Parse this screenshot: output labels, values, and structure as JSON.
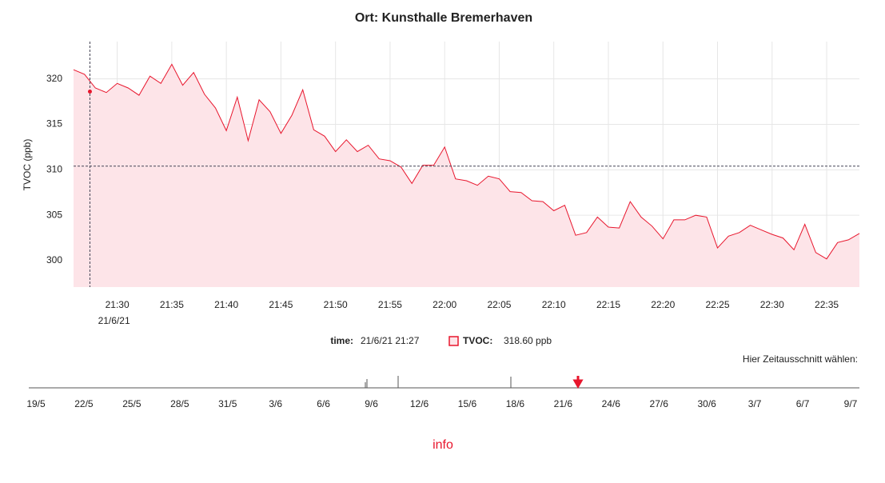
{
  "chart_data": {
    "type": "area",
    "title": "Ort: Kunsthalle Bremerhaven",
    "y_label": "TVOC (ppb)",
    "color": "#e8162d",
    "fill": "#fde4e8",
    "grid": true,
    "xlim": [
      "21:26",
      "22:38"
    ],
    "xticks": [
      "21:30",
      "21:35",
      "21:40",
      "21:45",
      "21:50",
      "21:55",
      "22:00",
      "22:05",
      "22:10",
      "22:15",
      "22:20",
      "22:25",
      "22:30",
      "22:35"
    ],
    "x_date": "21/6/21",
    "ylim": [
      297.1,
      324.1
    ],
    "yticks": [
      300,
      305,
      310,
      315,
      320
    ],
    "x": [
      "21:26",
      "21:27",
      "21:28",
      "21:29",
      "21:30",
      "21:31",
      "21:32",
      "21:33",
      "21:34",
      "21:35",
      "21:36",
      "21:37",
      "21:38",
      "21:39",
      "21:40",
      "21:41",
      "21:42",
      "21:43",
      "21:44",
      "21:45",
      "21:46",
      "21:47",
      "21:48",
      "21:49",
      "21:50",
      "21:51",
      "21:52",
      "21:53",
      "21:54",
      "21:55",
      "21:56",
      "21:57",
      "21:58",
      "21:59",
      "22:00",
      "22:01",
      "22:02",
      "22:03",
      "22:04",
      "22:05",
      "22:06",
      "22:07",
      "22:08",
      "22:09",
      "22:10",
      "22:11",
      "22:12",
      "22:13",
      "22:14",
      "22:15",
      "22:16",
      "22:17",
      "22:18",
      "22:19",
      "22:20",
      "22:21",
      "22:22",
      "22:23",
      "22:24",
      "22:25",
      "22:26",
      "22:27",
      "22:28",
      "22:29",
      "22:30",
      "22:31",
      "22:32",
      "22:33",
      "22:34",
      "22:35",
      "22:36",
      "22:37",
      "22:38"
    ],
    "values": [
      321,
      320.5,
      319,
      318.5,
      319.5,
      319,
      318.2,
      320.3,
      319.5,
      321.6,
      319.3,
      320.7,
      318.3,
      316.8,
      314.3,
      318,
      313.2,
      317.7,
      316.4,
      314,
      316,
      318.8,
      314.4,
      313.7,
      312,
      313.3,
      312,
      312.7,
      311.2,
      311,
      310.3,
      308.5,
      310.5,
      310.5,
      312.5,
      309,
      308.8,
      308.3,
      309.3,
      309,
      307.6,
      307.5,
      306.6,
      306.5,
      305.5,
      306.1,
      302.8,
      303.1,
      304.8,
      303.7,
      303.6,
      306.5,
      304.8,
      303.8,
      302.4,
      304.5,
      304.5,
      305,
      304.8,
      301.4,
      302.7,
      303.1,
      303.9,
      303.4,
      302.9,
      302.5,
      301.2,
      304,
      300.9,
      300.2,
      302,
      302.3,
      303
    ],
    "crosshair": {
      "x": "21:27.5",
      "value": 318.6
    },
    "hline": 310.4,
    "readout": {
      "time_label": "time:",
      "time": "21/6/21 21:27",
      "series_label": "TVOC:",
      "value": "318.60 ppb"
    }
  },
  "navigator": {
    "label": "Hier Zeitausschnitt wählen:",
    "ticks": [
      "19/5",
      "22/5",
      "25/5",
      "28/5",
      "31/5",
      "3/6",
      "6/6",
      "9/6",
      "12/6",
      "15/6",
      "18/6",
      "21/6",
      "24/6",
      "27/6",
      "30/6",
      "3/7",
      "6/7",
      "9/7"
    ]
  },
  "info": "info"
}
